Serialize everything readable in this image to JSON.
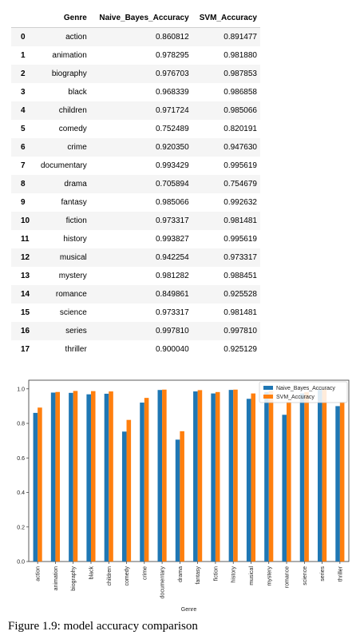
{
  "table": {
    "headers": [
      "",
      "Genre",
      "Naive_Bayes_Accuracy",
      "SVM_Accuracy"
    ],
    "rows": [
      [
        "0",
        "action",
        "0.860812",
        "0.891477"
      ],
      [
        "1",
        "animation",
        "0.978295",
        "0.981880"
      ],
      [
        "2",
        "biography",
        "0.976703",
        "0.987853"
      ],
      [
        "3",
        "black",
        "0.968339",
        "0.986858"
      ],
      [
        "4",
        "children",
        "0.971724",
        "0.985066"
      ],
      [
        "5",
        "comedy",
        "0.752489",
        "0.820191"
      ],
      [
        "6",
        "crime",
        "0.920350",
        "0.947630"
      ],
      [
        "7",
        "documentary",
        "0.993429",
        "0.995619"
      ],
      [
        "8",
        "drama",
        "0.705894",
        "0.754679"
      ],
      [
        "9",
        "fantasy",
        "0.985066",
        "0.992632"
      ],
      [
        "10",
        "fiction",
        "0.973317",
        "0.981481"
      ],
      [
        "11",
        "history",
        "0.993827",
        "0.995619"
      ],
      [
        "12",
        "musical",
        "0.942254",
        "0.973317"
      ],
      [
        "13",
        "mystery",
        "0.981282",
        "0.988451"
      ],
      [
        "14",
        "romance",
        "0.849861",
        "0.925528"
      ],
      [
        "15",
        "science",
        "0.973317",
        "0.981481"
      ],
      [
        "16",
        "series",
        "0.997810",
        "0.997810"
      ],
      [
        "17",
        "thriller",
        "0.900040",
        "0.925129"
      ]
    ]
  },
  "chart_data": {
    "type": "bar",
    "categories": [
      "action",
      "animation",
      "biography",
      "black",
      "children",
      "comedy",
      "crime",
      "documentary",
      "drama",
      "fantasy",
      "fiction",
      "history",
      "musical",
      "mystery",
      "romance",
      "science",
      "series",
      "thriller"
    ],
    "series": [
      {
        "name": "Naive_Bayes_Accuracy",
        "color": "#1f77b4",
        "values": [
          0.860812,
          0.978295,
          0.976703,
          0.968339,
          0.971724,
          0.752489,
          0.92035,
          0.993429,
          0.705894,
          0.985066,
          0.973317,
          0.993827,
          0.942254,
          0.981282,
          0.849861,
          0.973317,
          0.99781,
          0.90004
        ]
      },
      {
        "name": "SVM_Accuracy",
        "color": "#ff7f0e",
        "values": [
          0.891477,
          0.98188,
          0.987853,
          0.986858,
          0.985066,
          0.820191,
          0.94763,
          0.995619,
          0.754679,
          0.992632,
          0.981481,
          0.995619,
          0.973317,
          0.988451,
          0.925528,
          0.981481,
          0.99781,
          0.925129
        ]
      }
    ],
    "xlabel": "Genre",
    "ylabel": "",
    "ylim": [
      0,
      1.05
    ],
    "yticks": [
      "0.0",
      "0.2",
      "0.4",
      "0.6",
      "0.8",
      "1.0"
    ],
    "legend": "top-right",
    "grid": false
  },
  "caption": "Figure 1.9: model accuracy comparison"
}
